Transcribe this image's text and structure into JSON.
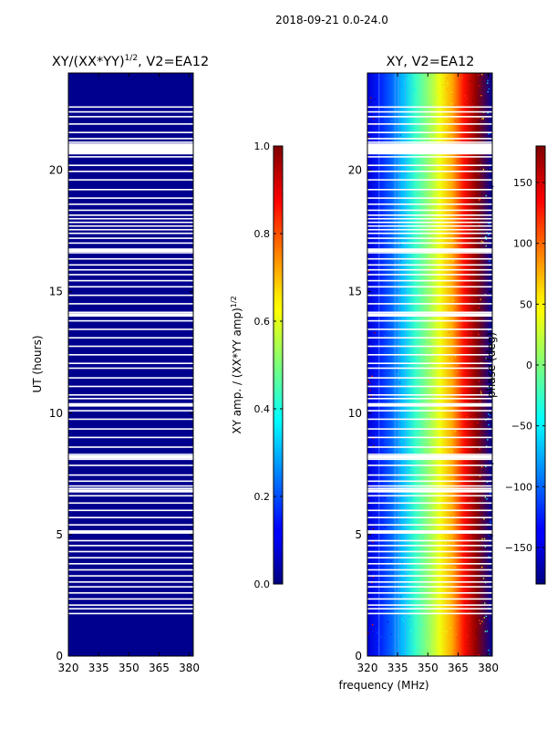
{
  "figure": {
    "suptitle": "2018-09-21 0.0-24.0"
  },
  "chart_data": [
    {
      "type": "heatmap",
      "title": "XY/(XX*YY)^{1/2}, V2=EA12",
      "title_main": "XY/(XX*YY)",
      "title_sup": "1/2",
      "title_tail": ", V2=EA12",
      "xlabel": "",
      "ylabel": "UT (hours)",
      "xlim": [
        320,
        382
      ],
      "ylim": [
        0,
        24
      ],
      "xticks": [
        320,
        335,
        350,
        365,
        380
      ],
      "yticks": [
        0,
        5,
        10,
        15,
        20
      ],
      "grid": false,
      "colormap": "jet",
      "fill_color": "#00008f",
      "cell_value_approx": 0.0,
      "colorbar": {
        "label": "XY amp. / (XX*YY amp)^{1/2}",
        "label_main": "XY amp. / (XX*YY amp)",
        "label_sup": "1/2",
        "range": [
          0.0,
          1.0
        ],
        "ticks": [
          "0.0",
          "0.2",
          "0.4",
          "0.6",
          "0.8",
          "1.0"
        ]
      }
    },
    {
      "type": "heatmap",
      "title": "XY, V2=EA12",
      "xlabel": "frequency (MHz)",
      "ylabel": "",
      "xlim": [
        320,
        382
      ],
      "ylim": [
        0,
        24
      ],
      "xticks": [
        320,
        335,
        350,
        365,
        380
      ],
      "yticks": [
        0,
        5,
        10,
        15,
        20
      ],
      "grid": false,
      "colormap": "jet",
      "phase_profile_deg": {
        "frequency_mhz": [
          320,
          326,
          332,
          338,
          344,
          350,
          356,
          362,
          368,
          374,
          382
        ],
        "phase": [
          -150,
          -125,
          -100,
          -65,
          -25,
          5,
          40,
          75,
          130,
          175,
          -170
        ]
      },
      "colorbar": {
        "label": "phase (deg)",
        "range": [
          -180,
          180
        ],
        "ticks": [
          "−150",
          "−100",
          "−50",
          "0",
          "50",
          "100",
          "150"
        ]
      }
    }
  ],
  "flagged_ut_hours": [
    1.75,
    1.95,
    2.1,
    2.35,
    2.6,
    2.85,
    3.05,
    3.3,
    3.55,
    3.8,
    4.05,
    4.3,
    4.55,
    4.75,
    5.15,
    5.4,
    5.7,
    6.0,
    6.3,
    6.6,
    6.9,
    7.0,
    7.2,
    7.45,
    7.85,
    8.1,
    8.3,
    8.6,
    9.0,
    9.35,
    9.75,
    10.1,
    10.3,
    10.6,
    10.75,
    11.1,
    11.45,
    11.85,
    12.05,
    12.4,
    12.75,
    13.1,
    13.45,
    13.8,
    14.0,
    14.15,
    14.5,
    14.85,
    15.2,
    15.45,
    15.7,
    15.9,
    16.1,
    16.35,
    16.6,
    16.75,
    17.0,
    17.2,
    17.4,
    17.55,
    17.7,
    17.85,
    18.0,
    18.15,
    18.35,
    18.6,
    18.85,
    19.2,
    19.6,
    19.95,
    20.2,
    20.55,
    21.15,
    21.3,
    21.55,
    21.9,
    22.2,
    22.4,
    22.6
  ],
  "flagged_wide_ut_hours": [
    5.1,
    6.8,
    8.2,
    10.35,
    14.05,
    16.7,
    20.95
  ]
}
